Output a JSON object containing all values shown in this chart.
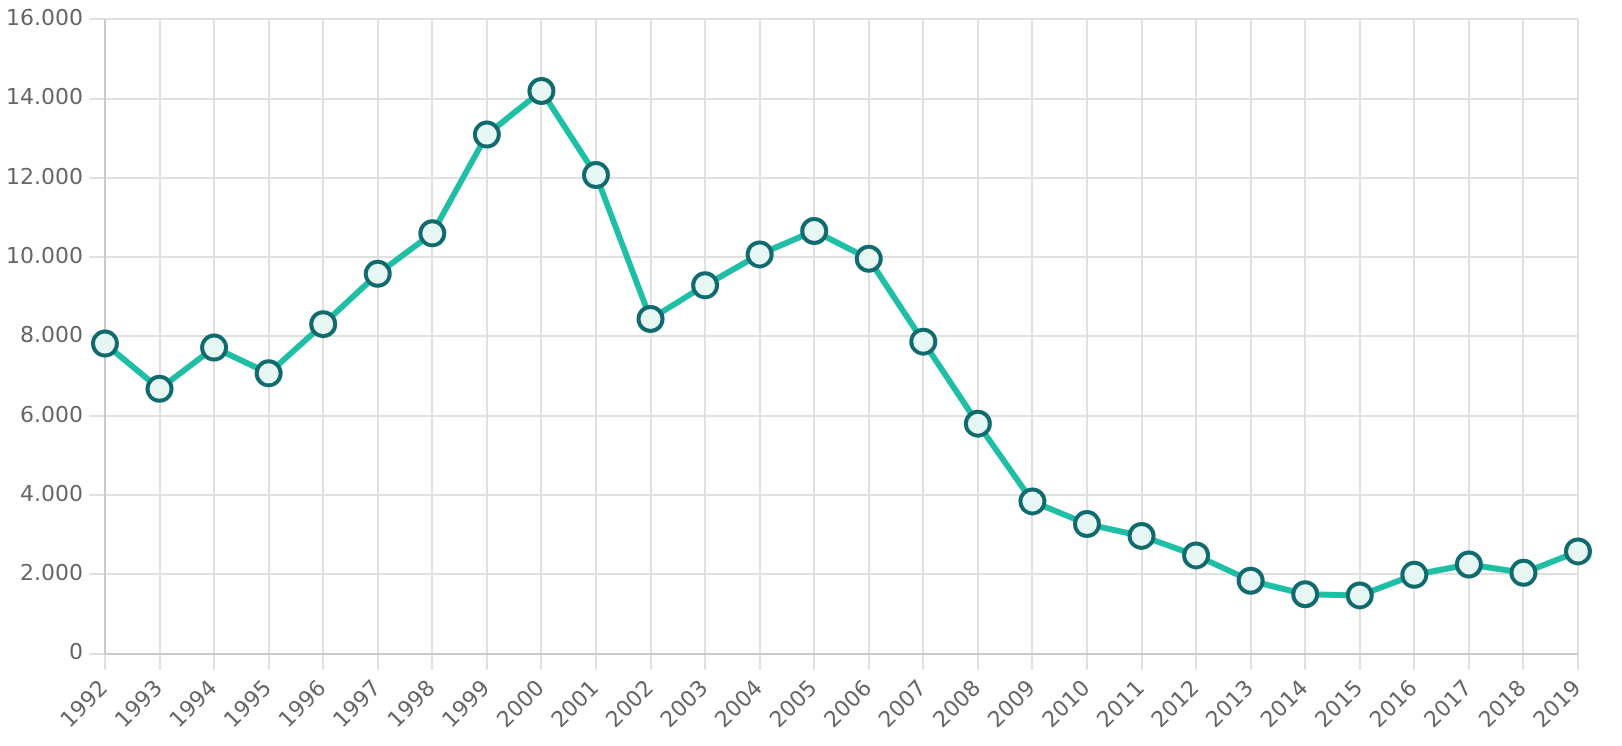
{
  "chart_data": {
    "type": "line",
    "categories": [
      "1992",
      "1993",
      "1994",
      "1995",
      "1996",
      "1997",
      "1998",
      "1999",
      "2000",
      "2001",
      "2002",
      "2003",
      "2004",
      "2005",
      "2006",
      "2007",
      "2008",
      "2009",
      "2010",
      "2011",
      "2012",
      "2013",
      "2014",
      "2015",
      "2016",
      "2017",
      "2018",
      "2019"
    ],
    "series": [
      {
        "color": "#1ebfa5",
        "values": [
          7820,
          6680,
          7720,
          7070,
          8310,
          9580,
          10600,
          13090,
          14190,
          12070,
          8440,
          9290,
          10070,
          10660,
          9960,
          7870,
          5800,
          3840,
          3270,
          2970,
          2480,
          1840,
          1500,
          1470,
          1990,
          2250,
          2040,
          2580
        ]
      }
    ],
    "ylim": [
      0,
      16000
    ],
    "yticks": [
      0,
      {
        "value": 2000,
        "label": "2.000"
      },
      {
        "value": 4000,
        "label": "4.000"
      },
      {
        "value": 6000,
        "label": "6.000"
      },
      {
        "value": 8000,
        "label": "8.000"
      },
      {
        "value": 10000,
        "label": "10.000"
      },
      {
        "value": 12000,
        "label": "12.000"
      },
      {
        "value": 14000,
        "label": "14.000"
      },
      {
        "value": 16000,
        "label": "16.000"
      }
    ],
    "grid": true,
    "marker": "circle",
    "line_style": "solid"
  }
}
